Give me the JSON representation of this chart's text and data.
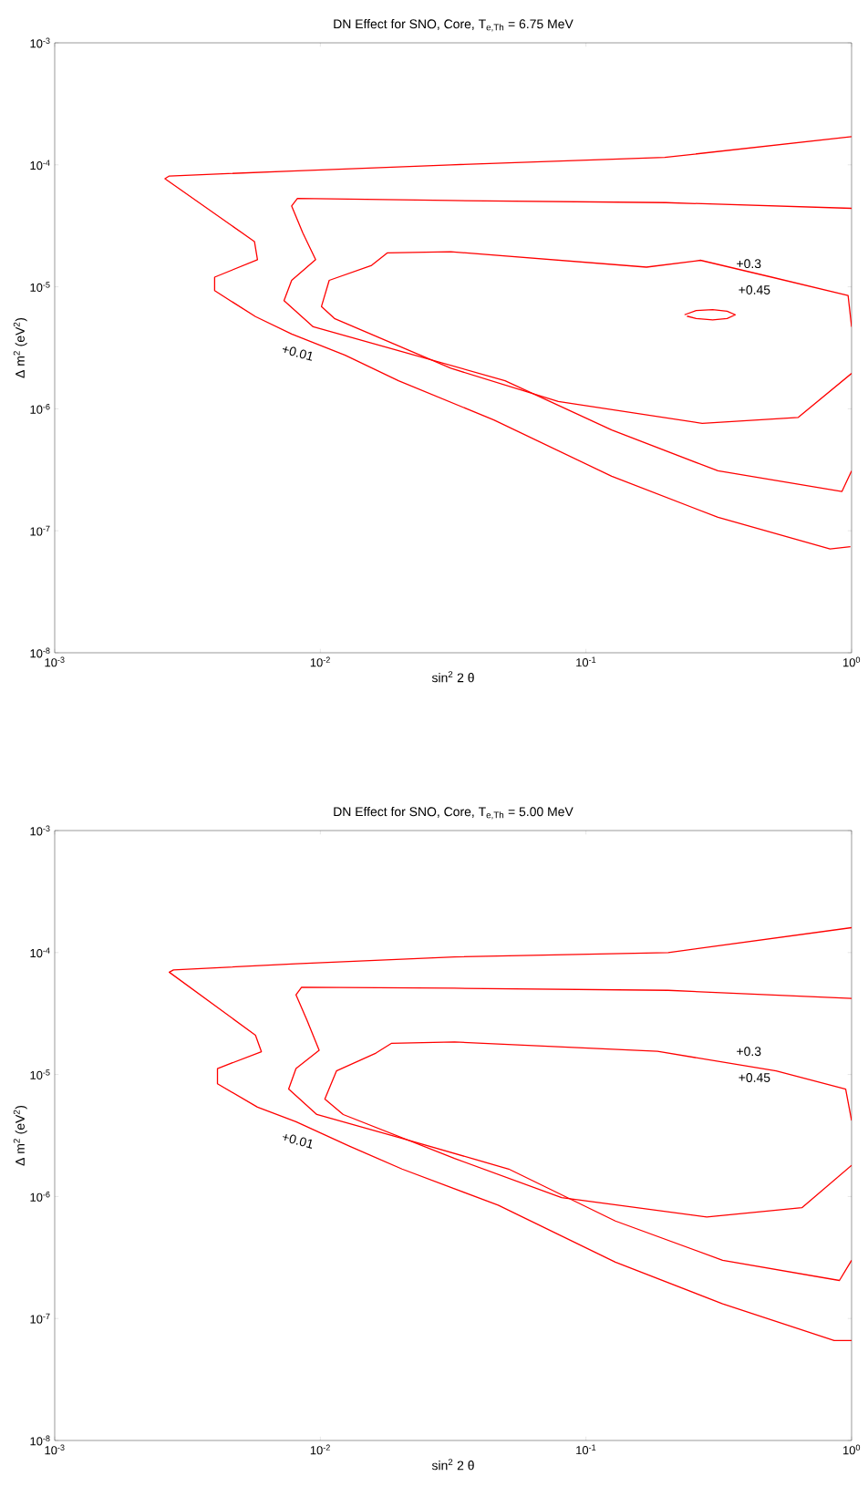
{
  "chart_data": [
    {
      "type": "line",
      "title": "DN Effect for SNO, Core, T$_{e,Th}$ = 6.75 MeV",
      "xlabel": "sin$^{2}$ 2 θ",
      "ylabel": "Δ m$^{2}$ (eV$^{2}$)",
      "log": "xy",
      "marker": "none",
      "line_style": "solid",
      "xlim": [
        0.001,
        1
      ],
      "ylim": [
        1e-08,
        0.001
      ],
      "xticks": [
        {
          "value": 0.001,
          "label": "10$^{-3}$"
        },
        {
          "value": 0.01,
          "label": "10$^{-2}$"
        },
        {
          "value": 0.1,
          "label": "10$^{-1}$"
        },
        {
          "value": 1,
          "label": "10$^{0}$"
        }
      ],
      "yticks": [
        {
          "value": 1e-08,
          "label": "10$^{-8}$"
        },
        {
          "value": 1e-07,
          "label": "10$^{-7}$"
        },
        {
          "value": 1e-06,
          "label": "10$^{-6}$"
        },
        {
          "value": 1e-05,
          "label": "10$^{-5}$"
        },
        {
          "value": 0.0001,
          "label": "10$^{-4}$"
        },
        {
          "value": 0.001,
          "label": "10$^{-3}$"
        }
      ],
      "series": [
        {
          "color": "#ff0000",
          "x": [
            1,
            0.198,
            0.031,
            0.0078,
            0.0027,
            0.0026,
            0.00565,
            0.0058,
            0.004,
            0.004,
            0.0057,
            0.0078,
            0.0124,
            0.0197,
            0.045,
            0.125,
            0.314,
            0.83,
            0.99
          ],
          "values": [
            0.00017,
            0.000115,
            0.0001,
            8.9e-05,
            8.1e-05,
            7.7e-05,
            2.35e-05,
            1.67e-05,
            1.2e-05,
            9.3e-06,
            5.7e-06,
            4.1e-06,
            2.75e-06,
            1.7e-06,
            8.1e-07,
            2.8e-07,
            1.29e-07,
            7.1e-08,
            7.4e-08
          ]
        },
        {
          "color": "#ff0000",
          "x": [
            1,
            0.2,
            0.031,
            0.0082,
            0.0078,
            0.0086,
            0.0096,
            0.0078,
            0.0073,
            0.0094,
            0.0197,
            0.0496,
            0.125,
            0.314,
            0.92,
            1
          ],
          "values": [
            4.4e-05,
            4.9e-05,
            5.1e-05,
            5.3e-05,
            4.6e-05,
            2.75e-05,
            1.67e-05,
            1.13e-05,
            7.7e-06,
            4.7e-06,
            3e-06,
            1.7e-06,
            6.7e-07,
            3.1e-07,
            2.1e-07,
            3.1e-07
          ]
        },
        {
          "color": "#ff0000",
          "x": [
            1,
            0.97,
            0.5,
            0.27,
            0.169,
            0.031,
            0.0179,
            0.0156,
            0.0108,
            0.0101,
            0.0113,
            0.031,
            0.0787,
            0.274,
            0.63,
            1
          ],
          "values": [
            4.7e-06,
            8.5e-06,
            1.2e-05,
            1.65e-05,
            1.45e-05,
            1.94e-05,
            1.9e-05,
            1.5e-05,
            1.13e-05,
            6.9e-06,
            5.5e-06,
            2.15e-06,
            1.15e-06,
            7.6e-07,
            8.5e-07,
            1.95e-06
          ]
        },
        {
          "color": "#ff0000",
          "x": [
            0.235,
            0.26,
            0.3,
            0.34,
            0.365,
            0.34,
            0.3,
            0.26,
            0.24
          ],
          "values": [
            5.9e-06,
            6.4e-06,
            6.5e-06,
            6.3e-06,
            5.9e-06,
            5.5e-06,
            5.35e-06,
            5.5e-06,
            5.75e-06
          ]
        }
      ],
      "annotations": [
        "+0.01",
        "+0.3",
        "+0.45"
      ]
    },
    {
      "type": "line",
      "title": "DN Effect for SNO, Core, T$_{e,Th}$ = 5.00 MeV",
      "xlabel": "sin$^{2}$ 2 θ",
      "ylabel": "Δ m$^{2}$ (eV$^{2}$)",
      "log": "xy",
      "marker": "none",
      "line_style": "solid",
      "xlim": [
        0.001,
        1
      ],
      "ylim": [
        1e-08,
        0.001
      ],
      "xticks": [
        {
          "value": 0.001,
          "label": "10$^{-3}$"
        },
        {
          "value": 0.01,
          "label": "10$^{-2}$"
        },
        {
          "value": 0.1,
          "label": "10$^{-1}$"
        },
        {
          "value": 1,
          "label": "10$^{0}$"
        }
      ],
      "yticks": [
        {
          "value": 1e-08,
          "label": "10$^{-8}$"
        },
        {
          "value": 1e-07,
          "label": "10$^{-7}$"
        },
        {
          "value": 1e-06,
          "label": "10$^{-6}$"
        },
        {
          "value": 1e-05,
          "label": "10$^{-5}$"
        },
        {
          "value": 0.0001,
          "label": "10$^{-4}$"
        },
        {
          "value": 0.001,
          "label": "10$^{-3}$"
        }
      ],
      "series": [
        {
          "color": "#ff0000",
          "x": [
            1,
            0.204,
            0.032,
            0.0081,
            0.0028,
            0.0027,
            0.0057,
            0.006,
            0.0041,
            0.0041,
            0.0058,
            0.0081,
            0.0128,
            0.0203,
            0.0467,
            0.129,
            0.327,
            0.86,
            1
          ],
          "values": [
            0.00016,
            0.0001,
            9.2e-05,
            8.1e-05,
            7.2e-05,
            6.9e-05,
            2.1e-05,
            1.54e-05,
            1.12e-05,
            8.4e-06,
            5.4e-06,
            4.1e-06,
            2.6e-06,
            1.68e-06,
            8.5e-07,
            2.9e-07,
            1.32e-07,
            6.6e-08,
            6.6e-08
          ]
        },
        {
          "color": "#ff0000",
          "x": [
            1,
            0.204,
            0.032,
            0.0085,
            0.0081,
            0.0089,
            0.0099,
            0.0081,
            0.0076,
            0.0097,
            0.0203,
            0.0512,
            0.129,
            0.327,
            0.9,
            1
          ],
          "values": [
            4.2e-05,
            4.9e-05,
            5.1e-05,
            5.2e-05,
            4.5e-05,
            2.8e-05,
            1.58e-05,
            1.12e-05,
            7.6e-06,
            4.7e-06,
            3e-06,
            1.68e-06,
            6.3e-07,
            3e-07,
            2.05e-07,
            3e-07
          ]
        },
        {
          "color": "#ff0000",
          "x": [
            1,
            0.95,
            0.52,
            0.186,
            0.032,
            0.0185,
            0.0162,
            0.0115,
            0.0104,
            0.0122,
            0.032,
            0.081,
            0.285,
            0.65,
            1
          ],
          "values": [
            4.2e-06,
            7.6e-06,
            1.07e-05,
            1.55e-05,
            1.85e-05,
            1.8e-05,
            1.5e-05,
            1.07e-05,
            6.3e-06,
            4.7e-06,
            2.05e-06,
            9.8e-07,
            6.8e-07,
            8.1e-07,
            1.8e-06
          ]
        }
      ],
      "annotations": [
        "+0.01",
        "+0.3",
        "+0.45"
      ]
    }
  ]
}
